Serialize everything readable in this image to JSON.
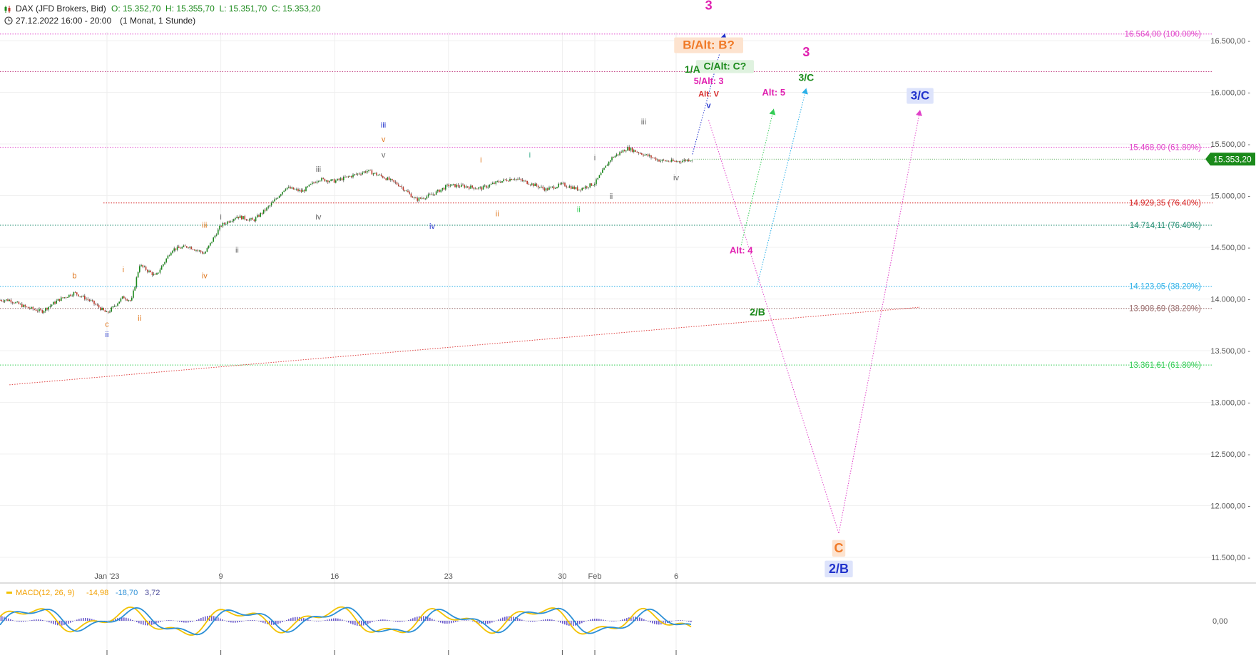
{
  "header": {
    "instrument": "DAX (JFD Brokers, Bid)",
    "ohlc": "O: 15.352,70  H: 15.355,70  L: 15.351,70  C: 15.353,20",
    "period": "27.12.2022 16:00 - 20:00",
    "timeframe": "(1 Monat, 1 Stunde)",
    "chart_icon": "candles-icon",
    "clock_icon": "clock-icon"
  },
  "colors": {
    "candle_up": "#1b8a1b",
    "candle_down": "#c0392b",
    "macd": "#f2c200",
    "signal": "#2b8fd6",
    "hist": "#6a5acd",
    "last_price": "#1b8a1b"
  },
  "chart_data": {
    "type": "candlestick",
    "y_axis": {
      "ticks": [
        11500,
        12000,
        12500,
        13000,
        13500,
        14000,
        14500,
        15000,
        15500,
        16000,
        16500
      ],
      "tick_labels": [
        "11.500,00",
        "12.000,00",
        "12.500,00",
        "13.000,00",
        "13.500,00",
        "14.000,00",
        "14.500,00",
        "15.000,00",
        "15.500,00",
        "16.000,00",
        "16.500,00"
      ]
    },
    "x_axis": {
      "labels": [
        "Jan '23",
        "9",
        "16",
        "23",
        "30",
        "Feb",
        "6"
      ],
      "dates": [
        "2023-01-02",
        "2023-01-09",
        "2023-01-16",
        "2023-01-23",
        "2023-01-30",
        "2023-02-01",
        "2023-02-06"
      ]
    },
    "price_path": [
      [
        "2022-12-27",
        13990
      ],
      [
        "2022-12-28",
        13920
      ],
      [
        "2022-12-29",
        13880
      ],
      [
        "2022-12-30",
        13990
      ],
      [
        "2022-12-31",
        14060
      ],
      [
        "2023-01-01",
        13980
      ],
      [
        "2023-01-02",
        13860
      ],
      [
        "2023-01-03",
        14020
      ],
      [
        "2023-01-03T12:00",
        13980
      ],
      [
        "2023-01-04",
        14330
      ],
      [
        "2023-01-05",
        14220
      ],
      [
        "2023-01-06",
        14480
      ],
      [
        "2023-01-07",
        14510
      ],
      [
        "2023-01-08",
        14440
      ],
      [
        "2023-01-09",
        14710
      ],
      [
        "2023-01-10",
        14800
      ],
      [
        "2023-01-11",
        14760
      ],
      [
        "2023-01-12",
        14900
      ],
      [
        "2023-01-13",
        15080
      ],
      [
        "2023-01-14",
        15040
      ],
      [
        "2023-01-15",
        15160
      ],
      [
        "2023-01-16",
        15140
      ],
      [
        "2023-01-17",
        15190
      ],
      [
        "2023-01-18",
        15240
      ],
      [
        "2023-01-19",
        15180
      ],
      [
        "2023-01-20",
        15100
      ],
      [
        "2023-01-21",
        14960
      ],
      [
        "2023-01-22",
        15010
      ],
      [
        "2023-01-23",
        15100
      ],
      [
        "2023-01-24",
        15090
      ],
      [
        "2023-01-25",
        15070
      ],
      [
        "2023-01-26",
        15130
      ],
      [
        "2023-01-27",
        15170
      ],
      [
        "2023-01-28",
        15120
      ],
      [
        "2023-01-29",
        15060
      ],
      [
        "2023-01-30",
        15110
      ],
      [
        "2023-01-31",
        15060
      ],
      [
        "2023-02-01",
        15120
      ],
      [
        "2023-02-02",
        15360
      ],
      [
        "2023-02-03",
        15460
      ],
      [
        "2023-02-04",
        15400
      ],
      [
        "2023-02-05",
        15340
      ],
      [
        "2023-02-06",
        15330
      ],
      [
        "2023-02-07",
        15353
      ]
    ],
    "last_price": 15353.2,
    "last_price_label": "15.353,20",
    "levels": [
      {
        "value": 16564.0,
        "label": "16.564,00 (100.00%)",
        "color": "#e040c8"
      },
      {
        "value": 16200.0,
        "label": "",
        "color": "#c64b8a"
      },
      {
        "value": 15468.0,
        "label": "15.468,00 (61.80%)",
        "color": "#e040c8"
      },
      {
        "value": 14929.35,
        "label": "14.929,35 (76.40%)",
        "color": "#d62424"
      },
      {
        "value": 14714.11,
        "label": "14.714,11 (76.40%)",
        "color": "#1a8a6e"
      },
      {
        "value": 14123.05,
        "label": "14.123,05 (38.20%)",
        "color": "#2bb0e8"
      },
      {
        "value": 13908.69,
        "label": "13.908,69 (38.20%)",
        "color": "#9b6e6e"
      },
      {
        "value": 13361.61,
        "label": "13.361,61 (61.80%)",
        "color": "#33cc55"
      }
    ],
    "trendline": {
      "from": [
        "2022-12-27",
        13170
      ],
      "to": [
        "2023-02-21",
        13920
      ]
    },
    "projections": [
      {
        "name": "main",
        "color": "#e040c8",
        "points": [
          [
            "2023-02-08",
            15730
          ],
          [
            "2023-02-16",
            11730
          ],
          [
            "2023-02-21",
            15830
          ]
        ]
      },
      {
        "name": "alt-green",
        "color": "#33cc55",
        "points": [
          [
            "2023-02-10",
            14520
          ],
          [
            "2023-02-12",
            15840
          ]
        ]
      },
      {
        "name": "alt-blue",
        "color": "#2bb0e8",
        "points": [
          [
            "2023-02-11",
            14140
          ],
          [
            "2023-02-14",
            16040
          ]
        ]
      },
      {
        "name": "extension",
        "color": "#2233cc",
        "points": [
          [
            "2023-02-07",
            15400
          ],
          [
            "2023-02-09",
            16570
          ]
        ]
      }
    ],
    "wave_labels": [
      {
        "t": "b",
        "d": "2022-12-31",
        "v": 14200,
        "c": "#e07820"
      },
      {
        "t": "c",
        "d": "2023-01-02",
        "v": 13730,
        "c": "#e07820"
      },
      {
        "t": "ii",
        "d": "2023-01-02",
        "v": 13630,
        "c": "#2233cc"
      },
      {
        "t": "i",
        "d": "2023-01-03",
        "v": 14260,
        "c": "#e07820"
      },
      {
        "t": "ii",
        "d": "2023-01-04",
        "v": 13790,
        "c": "#e07820"
      },
      {
        "t": "iii",
        "d": "2023-01-08",
        "v": 14690,
        "c": "#e07820"
      },
      {
        "t": "iv",
        "d": "2023-01-08",
        "v": 14200,
        "c": "#e07820"
      },
      {
        "t": "i",
        "d": "2023-01-09",
        "v": 14770,
        "c": "#666666"
      },
      {
        "t": "ii",
        "d": "2023-01-10",
        "v": 14450,
        "c": "#666666"
      },
      {
        "t": "iii",
        "d": "2023-01-15",
        "v": 15230,
        "c": "#666666"
      },
      {
        "t": "iv",
        "d": "2023-01-15",
        "v": 14770,
        "c": "#666666"
      },
      {
        "t": "iii",
        "d": "2023-01-19",
        "v": 15660,
        "c": "#2233cc"
      },
      {
        "t": "v",
        "d": "2023-01-19",
        "v": 15520,
        "c": "#e07820"
      },
      {
        "t": "v",
        "d": "2023-01-19",
        "v": 15370,
        "c": "#666666"
      },
      {
        "t": "iv",
        "d": "2023-01-22",
        "v": 14680,
        "c": "#2233cc"
      },
      {
        "t": "i",
        "d": "2023-01-25",
        "v": 15320,
        "c": "#e07820"
      },
      {
        "t": "ii",
        "d": "2023-01-26",
        "v": 14800,
        "c": "#e07820"
      },
      {
        "t": "i",
        "d": "2023-01-28",
        "v": 15370,
        "c": "#33aa88"
      },
      {
        "t": "ii",
        "d": "2023-01-31",
        "v": 14840,
        "c": "#33cc55"
      },
      {
        "t": "i",
        "d": "2023-02-01",
        "v": 15340,
        "c": "#666666"
      },
      {
        "t": "ii",
        "d": "2023-02-02",
        "v": 14970,
        "c": "#666666"
      },
      {
        "t": "iii",
        "d": "2023-02-04",
        "v": 15690,
        "c": "#666666"
      },
      {
        "t": "iv",
        "d": "2023-02-06",
        "v": 15150,
        "c": "#666666"
      }
    ],
    "big_labels": [
      {
        "t": "3",
        "d": "2023-02-08",
        "v": 16800,
        "c": "#e020b0",
        "s": 18
      },
      {
        "t": "B/Alt: B?",
        "d": "2023-02-08",
        "v": 16420,
        "c": "#f07a28",
        "s": 17,
        "bg": "#fde3cf"
      },
      {
        "t": "C/Alt: C?",
        "d": "2023-02-09",
        "v": 16220,
        "c": "#1b8a1b",
        "s": 14,
        "bg": "#dff2df"
      },
      {
        "t": "1/A",
        "d": "2023-02-07",
        "v": 16190,
        "c": "#1b8a1b",
        "s": 14
      },
      {
        "t": "5/Alt: 3",
        "d": "2023-02-08",
        "v": 16080,
        "c": "#e020b0",
        "s": 12.5
      },
      {
        "t": "Alt: V",
        "d": "2023-02-08",
        "v": 15960,
        "c": "#d62424",
        "s": 11
      },
      {
        "t": "v",
        "d": "2023-02-08",
        "v": 15850,
        "c": "#2233cc",
        "s": 11
      },
      {
        "t": "Alt: 5",
        "d": "2023-02-12",
        "v": 15970,
        "c": "#e020b0",
        "s": 13
      },
      {
        "t": "3",
        "d": "2023-02-14",
        "v": 16350,
        "c": "#e020b0",
        "s": 18
      },
      {
        "t": "3/C",
        "d": "2023-02-14",
        "v": 16110,
        "c": "#1b8a1b",
        "s": 14
      },
      {
        "t": "3/C",
        "d": "2023-02-21",
        "v": 15930,
        "c": "#2233cc",
        "s": 17,
        "bg": "#dde3fb"
      },
      {
        "t": "Alt: 4",
        "d": "2023-02-10",
        "v": 14440,
        "c": "#e020b0",
        "s": 13
      },
      {
        "t": "2/B",
        "d": "2023-02-11",
        "v": 13840,
        "c": "#1b8a1b",
        "s": 14
      },
      {
        "t": "C",
        "d": "2023-02-16",
        "v": 11550,
        "c": "#f07a28",
        "s": 18,
        "bg": "#fde3cf"
      },
      {
        "t": "2/B",
        "d": "2023-02-16",
        "v": 11350,
        "c": "#2233cc",
        "s": 18,
        "bg": "#dde3fb"
      }
    ],
    "macd": {
      "label": "MACD(12, 26, 9)",
      "macd_value": "-14,98",
      "signal_value": "-18,70",
      "hist_value": "3,72",
      "y_tick": "0,00",
      "y_tick_value": 0
    }
  }
}
